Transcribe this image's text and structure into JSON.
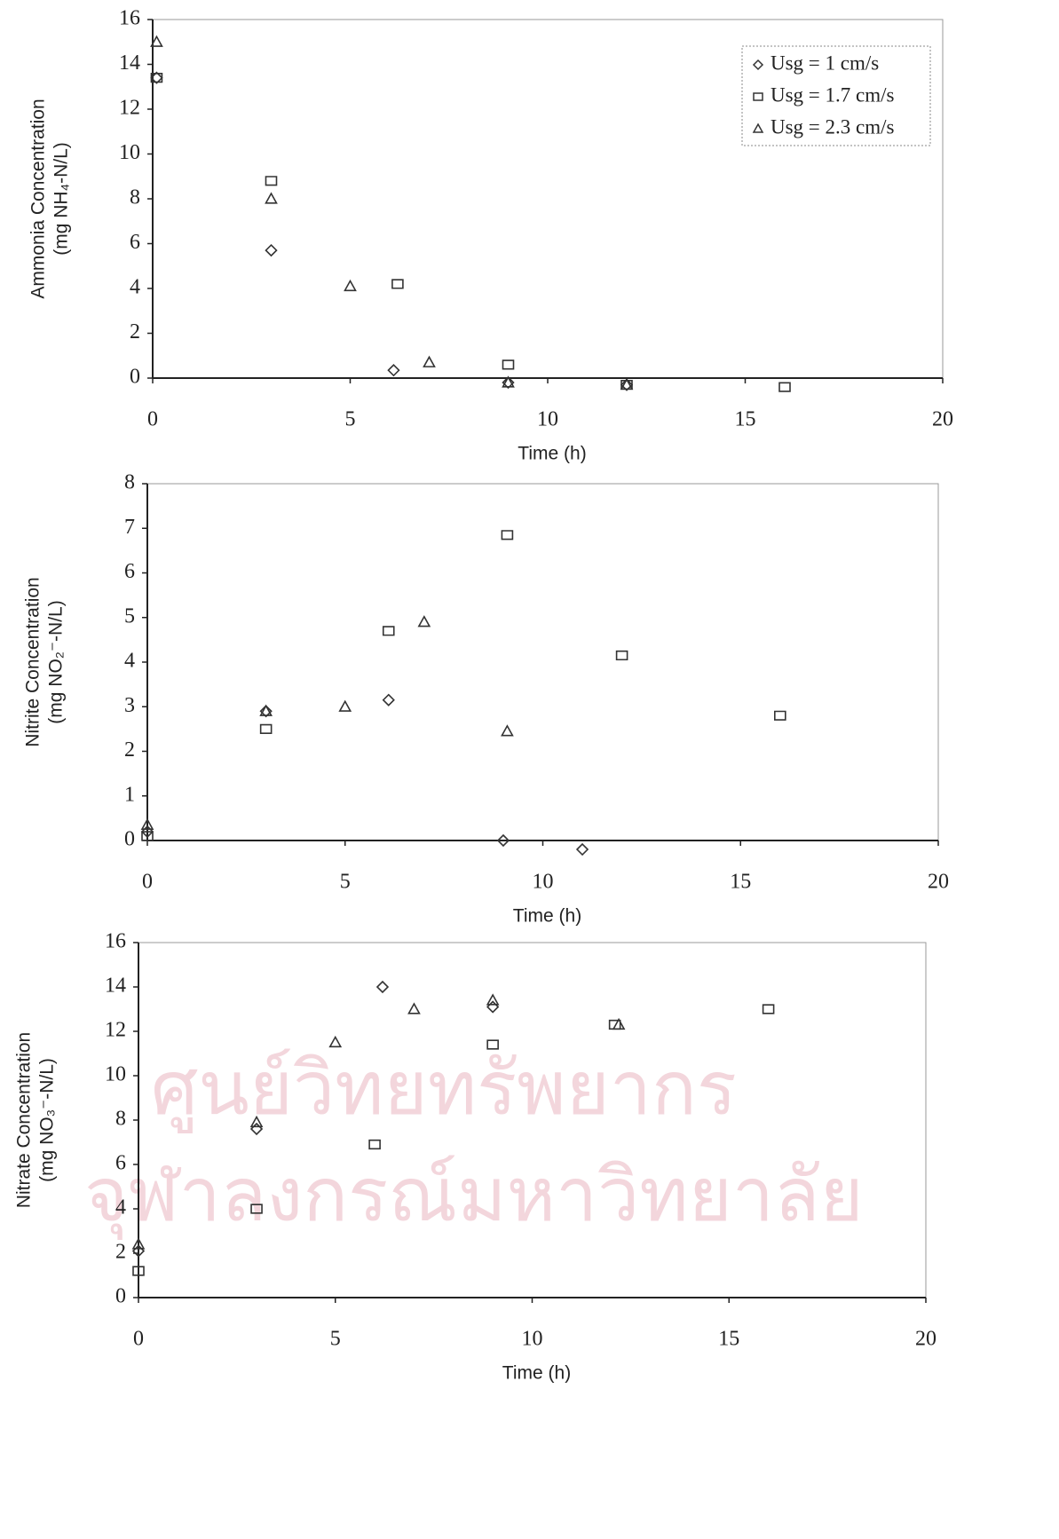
{
  "watermark": [
    "ศูนย์วิทยทรัพยากร",
    "จุฬาลงกรณ์มหาวิทยาลัย"
  ],
  "chart_data": [
    {
      "type": "scatter",
      "xlabel": "Time (h)",
      "ylabel": [
        "Ammonia Concentration",
        "(mg NH₄-N/L)"
      ],
      "xlim": [
        0,
        20
      ],
      "xticks": [
        0,
        5,
        10,
        15,
        20
      ],
      "ylim": [
        0,
        16
      ],
      "yticks": [
        0,
        2,
        4,
        6,
        8,
        10,
        12,
        14,
        16
      ],
      "grid": false,
      "legend": "upper right",
      "series": [
        {
          "name": "Usg = 1 cm/s",
          "marker": "diamond",
          "color": "#333333",
          "x": [
            0.1,
            3,
            6.1,
            9,
            12
          ],
          "values": [
            13.4,
            5.7,
            0.35,
            -0.2,
            -0.3
          ]
        },
        {
          "name": "Usg = 1.7 cm/s",
          "marker": "square",
          "color": "#333333",
          "x": [
            0.1,
            3,
            6.2,
            9,
            12,
            16
          ],
          "values": [
            13.4,
            8.8,
            4.2,
            0.6,
            -0.3,
            -0.4
          ]
        },
        {
          "name": "Usg = 2.3 cm/s",
          "marker": "triangle",
          "color": "#333333",
          "x": [
            0.1,
            3,
            5,
            7,
            9,
            12
          ],
          "values": [
            15,
            8,
            4.1,
            0.7,
            -0.2,
            -0.3
          ]
        }
      ]
    },
    {
      "type": "scatter",
      "xlabel": "Time (h)",
      "ylabel": [
        "Nitrite Concentration",
        "(mg NO₂⁻-N/L)"
      ],
      "xlim": [
        0,
        20
      ],
      "xticks": [
        0,
        5,
        10,
        15,
        20
      ],
      "ylim": [
        0,
        8
      ],
      "yticks": [
        0,
        1,
        2,
        3,
        4,
        5,
        6,
        7,
        8
      ],
      "grid": false,
      "series": [
        {
          "marker": "diamond",
          "color": "#333333",
          "x": [
            0,
            3,
            6.1,
            9,
            11
          ],
          "values": [
            0.2,
            2.9,
            3.15,
            0,
            -0.2
          ]
        },
        {
          "marker": "square",
          "color": "#333333",
          "x": [
            0,
            3,
            6.1,
            9.1,
            12,
            16
          ],
          "values": [
            0.1,
            2.5,
            4.7,
            6.85,
            4.15,
            2.8
          ]
        },
        {
          "marker": "triangle",
          "color": "#333333",
          "x": [
            0,
            3,
            5,
            7,
            9.1
          ],
          "values": [
            0.35,
            2.9,
            3,
            4.9,
            2.45
          ]
        }
      ]
    },
    {
      "type": "scatter",
      "xlabel": "Time (h)",
      "ylabel": [
        "Nitrate Concentration",
        "(mg NO₃⁻-N/L)"
      ],
      "xlim": [
        0,
        20
      ],
      "xticks": [
        0,
        5,
        10,
        15,
        20
      ],
      "ylim": [
        0,
        16
      ],
      "yticks": [
        0,
        2,
        4,
        6,
        8,
        10,
        12,
        14,
        16
      ],
      "grid": false,
      "series": [
        {
          "marker": "diamond",
          "color": "#333333",
          "x": [
            0,
            3,
            6.2,
            9
          ],
          "values": [
            2.1,
            7.6,
            14,
            13.1
          ]
        },
        {
          "marker": "square",
          "color": "#333333",
          "x": [
            0,
            3,
            6,
            9,
            12.1,
            16
          ],
          "values": [
            1.2,
            4,
            6.9,
            11.4,
            12.3,
            13
          ]
        },
        {
          "marker": "triangle",
          "color": "#333333",
          "x": [
            0,
            3,
            5,
            7,
            9,
            12.2
          ],
          "values": [
            2.4,
            7.9,
            11.5,
            13,
            13.4,
            12.3
          ]
        }
      ]
    }
  ]
}
